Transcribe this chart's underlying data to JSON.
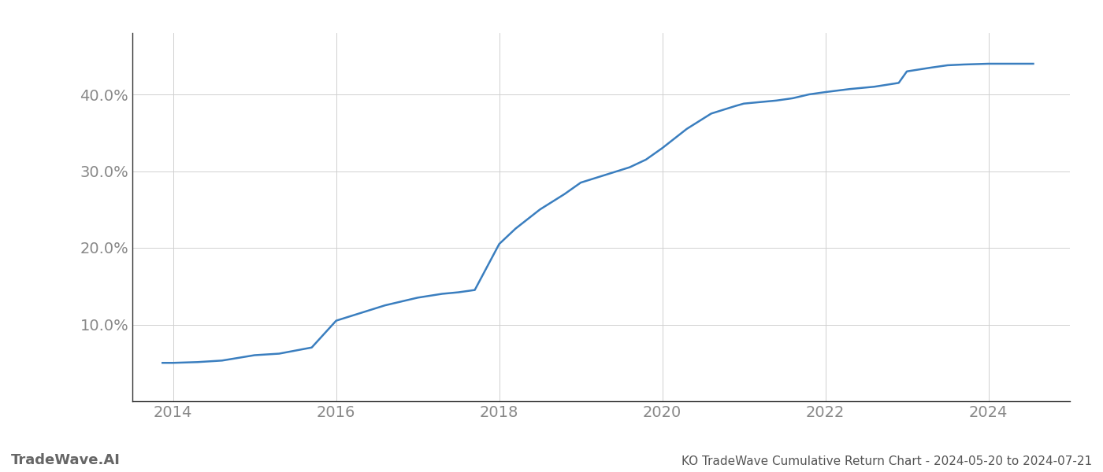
{
  "title": "KO TradeWave Cumulative Return Chart - 2024-05-20 to 2024-07-21",
  "watermark": "TradeWave.AI",
  "line_color": "#3a7ebf",
  "background_color": "#ffffff",
  "grid_color": "#d0d0d0",
  "x_years": [
    2013.87,
    2014.0,
    2014.3,
    2014.6,
    2015.0,
    2015.3,
    2015.7,
    2016.0,
    2016.3,
    2016.6,
    2017.0,
    2017.3,
    2017.5,
    2017.7,
    2018.0,
    2018.2,
    2018.5,
    2018.8,
    2019.0,
    2019.3,
    2019.6,
    2019.8,
    2020.0,
    2020.3,
    2020.6,
    2020.9,
    2021.0,
    2021.2,
    2021.4,
    2021.6,
    2021.8,
    2022.0,
    2022.3,
    2022.6,
    2022.9,
    2023.0,
    2023.3,
    2023.5,
    2023.7,
    2024.0,
    2024.3,
    2024.55
  ],
  "y_values": [
    5.0,
    5.0,
    5.1,
    5.3,
    6.0,
    6.2,
    7.0,
    10.5,
    11.5,
    12.5,
    13.5,
    14.0,
    14.2,
    14.5,
    20.5,
    22.5,
    25.0,
    27.0,
    28.5,
    29.5,
    30.5,
    31.5,
    33.0,
    35.5,
    37.5,
    38.5,
    38.8,
    39.0,
    39.2,
    39.5,
    40.0,
    40.3,
    40.7,
    41.0,
    41.5,
    43.0,
    43.5,
    43.8,
    43.9,
    44.0,
    44.0,
    44.0
  ],
  "xlim": [
    2013.5,
    2025.0
  ],
  "ylim": [
    0,
    48
  ],
  "yticks": [
    10.0,
    20.0,
    30.0,
    40.0
  ],
  "xticks": [
    2014,
    2016,
    2018,
    2020,
    2022,
    2024
  ],
  "line_width": 1.8,
  "title_fontsize": 11,
  "tick_fontsize": 14,
  "watermark_fontsize": 13
}
